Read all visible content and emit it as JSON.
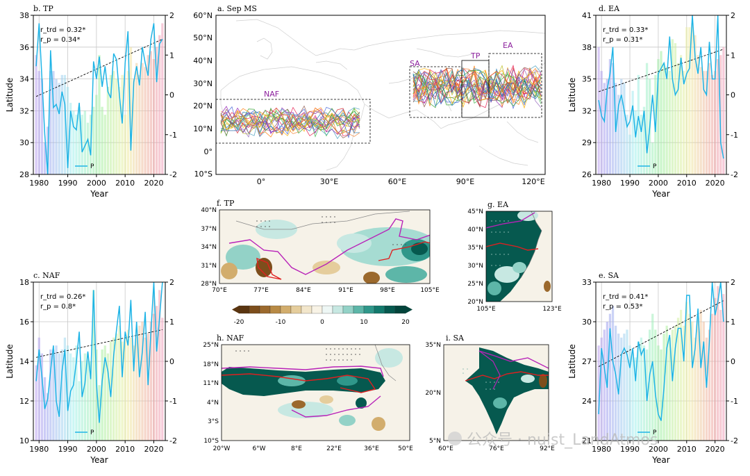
{
  "figure_title": "Sep MS",
  "watermark": "公众号 · nuist_LandAtmos",
  "chart_data": [
    {
      "id": "b",
      "type": "line",
      "title": "b. TP",
      "xlabel": "Year",
      "ylabel": "Latitude",
      "xlim": [
        1978,
        2024
      ],
      "ylim": [
        28,
        38
      ],
      "y2lim": [
        -2,
        2
      ],
      "xticks": [
        1980,
        1990,
        2000,
        2010,
        2020
      ],
      "yticks": [
        28,
        30,
        32,
        34,
        36,
        38
      ],
      "y2ticks": [
        -2,
        -1,
        0,
        1,
        2
      ],
      "stats": [
        "r_trd = 0.32*",
        "r_p = 0.34*"
      ],
      "legend": "P",
      "x": [
        1979,
        1980,
        1981,
        1982,
        1983,
        1984,
        1985,
        1986,
        1987,
        1988,
        1989,
        1990,
        1991,
        1992,
        1993,
        1994,
        1995,
        1996,
        1997,
        1998,
        1999,
        2000,
        2001,
        2002,
        2003,
        2004,
        2005,
        2006,
        2007,
        2008,
        2009,
        2010,
        2011,
        2012,
        2013,
        2014,
        2015,
        2016,
        2017,
        2018,
        2019,
        2020,
        2021,
        2022,
        2023
      ],
      "latitude": [
        34.8,
        37.5,
        34.0,
        30.5,
        28.0,
        35.8,
        32.2,
        32.4,
        31.8,
        33.2,
        32.4,
        28.4,
        32.0,
        31.0,
        30.8,
        32.5,
        29.4,
        29.8,
        30.2,
        29.2,
        35.1,
        34.0,
        35.4,
        33.5,
        34.8,
        33.2,
        32.8,
        35.6,
        35.2,
        33.0,
        31.2,
        35.0,
        37.0,
        29.5,
        33.8,
        34.8,
        33.6,
        36.0,
        35.0,
        34.2,
        36.5,
        37.5,
        33.8,
        36.2,
        36.5
      ],
      "bars": [
        1.0,
        0.6,
        0.4,
        -1.2,
        -0.8,
        0.6,
        0.6,
        0.4,
        0.3,
        0.5,
        0.5,
        0.2,
        -0.2,
        -0.4,
        -0.5,
        -0.3,
        -0.5,
        -0.4,
        -0.7,
        -0.5,
        -0.3,
        0.0,
        1.0,
        -0.3,
        -0.5,
        0.2,
        0.5,
        0.6,
        0.4,
        0.2,
        0.5,
        -0.5,
        0.6,
        1.2,
        0.4,
        0.8,
        0.5,
        0.8,
        0.7,
        1.0,
        1.1,
        0.9,
        1.2,
        1.5,
        1.8
      ],
      "trend": [
        32.9,
        36.5
      ]
    },
    {
      "id": "c",
      "type": "line",
      "title": "c. NAF",
      "xlabel": "Year",
      "ylabel": "Latitude",
      "xlim": [
        1978,
        2024
      ],
      "ylim": [
        10,
        18
      ],
      "y2lim": [
        -2,
        2
      ],
      "xticks": [
        1980,
        1990,
        2000,
        2010,
        2020
      ],
      "yticks": [
        10,
        12,
        14,
        16,
        18
      ],
      "y2ticks": [
        -2,
        -1,
        0,
        1,
        2
      ],
      "stats": [
        "r_trd = 0.26*",
        "r_p = 0.8*"
      ],
      "legend": "P",
      "x": [
        1979,
        1980,
        1981,
        1982,
        1983,
        1984,
        1985,
        1986,
        1987,
        1988,
        1989,
        1990,
        1991,
        1992,
        1993,
        1994,
        1995,
        1996,
        1997,
        1998,
        1999,
        2000,
        2001,
        2002,
        2003,
        2004,
        2005,
        2006,
        2007,
        2008,
        2009,
        2010,
        2011,
        2012,
        2013,
        2014,
        2015,
        2016,
        2017,
        2018,
        2019,
        2020,
        2021,
        2022,
        2023
      ],
      "latitude": [
        13.0,
        14.6,
        13.2,
        11.6,
        12.1,
        13.5,
        14.8,
        12.0,
        11.2,
        13.5,
        14.6,
        11.5,
        12.5,
        12.8,
        14.0,
        15.5,
        12.2,
        12.9,
        14.5,
        13.1,
        17.6,
        12.9,
        10.9,
        13.0,
        14.2,
        13.5,
        12.2,
        14.3,
        15.6,
        16.8,
        13.2,
        15.5,
        14.8,
        17.1,
        13.5,
        16.0,
        13.2,
        14.5,
        16.5,
        12.8,
        15.5,
        18.0,
        14.5,
        16.2,
        18.0
      ],
      "bars": [
        -0.1,
        0.6,
        0.2,
        -0.4,
        -0.8,
        0.3,
        0.3,
        0.4,
        0.2,
        0.3,
        0.6,
        0.4,
        0.2,
        0.1,
        0.4,
        -0.5,
        0.0,
        0.2,
        0.2,
        0.0,
        1.8,
        0.3,
        -0.6,
        0.3,
        0.4,
        0.2,
        0.5,
        0.6,
        0.7,
        0.9,
        0.5,
        0.6,
        0.8,
        0.6,
        0.4,
        0.8,
        0.9,
        1.0,
        0.6,
        0.7,
        1.0,
        1.2,
        1.4,
        1.8,
        1.1
      ],
      "trend": [
        14.2,
        15.6
      ]
    },
    {
      "id": "d",
      "type": "line",
      "title": "d. EA",
      "xlabel": "Year",
      "ylabel": "Latitude",
      "xlim": [
        1978,
        2024
      ],
      "ylim": [
        26,
        41
      ],
      "y2lim": [
        -2,
        2
      ],
      "xticks": [
        1980,
        1990,
        2000,
        2010,
        2020
      ],
      "yticks": [
        26,
        29,
        32,
        35,
        38,
        41
      ],
      "y2ticks": [
        -2,
        -1,
        0,
        1,
        2
      ],
      "stats": [
        "r_trd = 0.33*",
        "r_p = 0.31*"
      ],
      "legend": "P",
      "x": [
        1979,
        1980,
        1981,
        1982,
        1983,
        1984,
        1985,
        1986,
        1987,
        1988,
        1989,
        1990,
        1991,
        1992,
        1993,
        1994,
        1995,
        1996,
        1997,
        1998,
        1999,
        2000,
        2001,
        2002,
        2003,
        2004,
        2005,
        2006,
        2007,
        2008,
        2009,
        2010,
        2011,
        2012,
        2013,
        2014,
        2015,
        2016,
        2017,
        2018,
        2019,
        2020,
        2021,
        2022,
        2023
      ],
      "latitude": [
        33.0,
        31.5,
        31.0,
        34.0,
        35.5,
        38.0,
        30.0,
        32.5,
        33.5,
        32.0,
        30.5,
        31.0,
        32.5,
        29.5,
        31.5,
        30.0,
        32.0,
        28.0,
        30.5,
        33.5,
        30.0,
        35.5,
        36.0,
        36.5,
        35.0,
        39.0,
        35.0,
        33.5,
        34.0,
        37.0,
        34.5,
        35.5,
        36.0,
        41.0,
        37.0,
        35.5,
        38.0,
        34.0,
        33.5,
        38.5,
        35.0,
        35.0,
        41.0,
        29.0,
        27.5
      ],
      "bars": [
        1.2,
        0.6,
        0.3,
        0.4,
        0.9,
        0.8,
        0.3,
        0.0,
        0.4,
        0.3,
        -0.5,
        -1.0,
        0.1,
        -0.4,
        0.5,
        -0.5,
        -0.3,
        0.8,
        0.4,
        -1.2,
        0.5,
        0.9,
        1.1,
        0.8,
        0.7,
        0.6,
        1.4,
        1.3,
        0.8,
        1.0,
        0.6,
        1.7,
        1.7,
        1.8,
        1.5,
        1.0,
        0.7,
        0.6,
        0.6,
        0.8,
        0.5,
        0.6,
        0.9,
        1.0,
        1.2
      ],
      "trend": [
        33.8,
        37.8
      ]
    },
    {
      "id": "e",
      "type": "line",
      "title": "e. SA",
      "xlabel": "Year",
      "ylabel": "Latitude",
      "xlim": [
        1978,
        2024
      ],
      "ylim": [
        21,
        33
      ],
      "y2lim": [
        -2,
        2
      ],
      "xticks": [
        1980,
        1990,
        2000,
        2010,
        2020
      ],
      "yticks": [
        21,
        24,
        27,
        30,
        33
      ],
      "y2ticks": [
        -2,
        -1,
        0,
        1,
        2
      ],
      "stats": [
        "r_trd = 0.41*",
        "r_p = 0.53*"
      ],
      "legend": "P",
      "x": [
        1979,
        1980,
        1981,
        1982,
        1983,
        1984,
        1985,
        1986,
        1987,
        1988,
        1989,
        1990,
        1991,
        1992,
        1993,
        1994,
        1995,
        1996,
        1997,
        1998,
        1999,
        2000,
        2001,
        2002,
        2003,
        2004,
        2005,
        2006,
        2007,
        2008,
        2009,
        2010,
        2011,
        2012,
        2013,
        2014,
        2015,
        2016,
        2017,
        2018,
        2019,
        2020,
        2021,
        2022,
        2023
      ],
      "latitude": [
        23.0,
        28.0,
        26.5,
        25.0,
        29.5,
        27.0,
        26.0,
        24.5,
        27.5,
        28.0,
        27.5,
        26.5,
        28.0,
        25.5,
        28.5,
        27.5,
        28.0,
        24.0,
        26.0,
        27.0,
        24.5,
        23.0,
        22.5,
        25.0,
        28.0,
        29.0,
        25.5,
        28.0,
        29.5,
        29.5,
        27.0,
        32.0,
        32.0,
        26.5,
        28.0,
        31.0,
        26.5,
        28.5,
        25.0,
        28.5,
        33.0,
        30.5,
        31.5,
        33.0,
        30.0
      ],
      "bars": [
        0.4,
        0.6,
        0.8,
        1.0,
        1.2,
        1.4,
        0.9,
        0.7,
        0.6,
        0.7,
        0.8,
        0.4,
        0.2,
        0.1,
        0.5,
        0.6,
        0.4,
        0.3,
        0.8,
        1.2,
        0.8,
        0.4,
        0.3,
        0.7,
        0.9,
        0.6,
        0.8,
        0.9,
        1.1,
        1.3,
        0.9,
        1.5,
        1.2,
        1.0,
        0.6,
        1.1,
        1.3,
        1.0,
        0.6,
        0.8,
        1.2,
        1.6,
        1.9,
        1.3,
        1.7
      ],
      "trend": [
        26.6,
        31.6
      ]
    },
    {
      "id": "a",
      "type": "line",
      "title": "a. Sep MS",
      "lon_ticks": [
        "0°",
        "30°E",
        "60°E",
        "90°E",
        "120°E"
      ],
      "lat_ticks": [
        "10°S",
        "0°",
        "10°N",
        "20°N",
        "30°N",
        "40°N",
        "50°N",
        "60°N"
      ],
      "regions": [
        "NAF",
        "SA",
        "TP",
        "EA"
      ]
    },
    {
      "id": "f",
      "type": "heatmap",
      "title": "f. TP",
      "lon_ticks": [
        "70°E",
        "77°E",
        "84°E",
        "91°E",
        "98°E",
        "105°E"
      ],
      "lat_ticks": [
        "28°N",
        "31°N",
        "34°N",
        "37°N",
        "40°N"
      ]
    },
    {
      "id": "g",
      "type": "heatmap",
      "title": "g. EA",
      "lon_ticks": [
        "105°E",
        "123°E"
      ],
      "lat_ticks": [
        "20°N",
        "25°N",
        "30°N",
        "35°N",
        "40°N",
        "45°N"
      ]
    },
    {
      "id": "h",
      "type": "heatmap",
      "title": "h. NAF",
      "lon_ticks": [
        "20°W",
        "6°W",
        "8°E",
        "22°E",
        "36°E",
        "50°E"
      ],
      "lat_ticks": [
        "10°S",
        "3°S",
        "4°N",
        "11°N",
        "18°N",
        "25°N"
      ]
    },
    {
      "id": "i",
      "type": "heatmap",
      "title": "i. SA",
      "lon_ticks": [
        "60°E",
        "76°E",
        "92°E"
      ],
      "lat_ticks": [
        "5°N",
        "20°N",
        "35°N"
      ]
    },
    {
      "id": "colorbar",
      "type": "heatmap",
      "ticks": [
        -20,
        -10,
        0,
        10,
        20
      ],
      "colors": [
        "#5a3510",
        "#7d4e1c",
        "#9b692d",
        "#b88a45",
        "#d2ad6d",
        "#e5cd9c",
        "#f2e6cb",
        "#f8f3e6",
        "#eef7f5",
        "#c7e8e2",
        "#93d2c7",
        "#5db6a8",
        "#2f978a",
        "#137a6d",
        "#06594f",
        "#02443b"
      ]
    }
  ]
}
